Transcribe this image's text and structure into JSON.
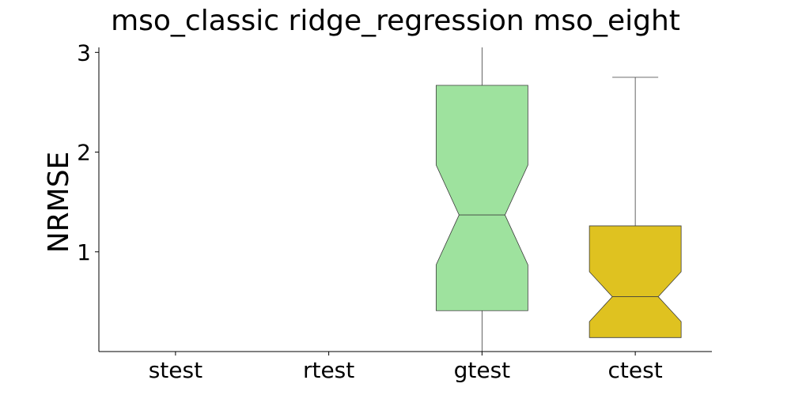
{
  "chart_data": {
    "type": "boxplot",
    "notched": true,
    "title": "mso_classic ridge_regression mso_eight",
    "xlabel": "",
    "ylabel": "NRMSE",
    "categories": [
      "stest",
      "rtest",
      "gtest",
      "ctest"
    ],
    "colors": [
      "#4c72b0",
      "#dd8452",
      "#9ee29e",
      "#dfc220"
    ],
    "ylim": [
      0.0,
      3.05
    ],
    "yticks": [
      1,
      2,
      3
    ],
    "grid": false,
    "boxes": [
      {
        "label": "stest",
        "whislo": 0.0,
        "q1": 0.0,
        "med": 0.0,
        "q3": 0.0,
        "whishi": 0.0,
        "notch_lo": 0.0,
        "notch_hi": 0.0
      },
      {
        "label": "rtest",
        "whislo": 0.0,
        "q1": 0.0,
        "med": 0.0,
        "q3": 0.0,
        "whishi": 0.0,
        "notch_lo": 0.0,
        "notch_hi": 0.0
      },
      {
        "label": "gtest",
        "whislo": 0.0,
        "q1": 0.41,
        "med": 1.37,
        "q3": 2.67,
        "whishi": 3.05,
        "notch_lo": 0.87,
        "notch_hi": 1.87
      },
      {
        "label": "ctest",
        "whislo": 0.14,
        "q1": 0.14,
        "med": 0.55,
        "q3": 1.26,
        "whishi": 2.75,
        "notch_lo": 0.3,
        "notch_hi": 0.8
      }
    ]
  }
}
